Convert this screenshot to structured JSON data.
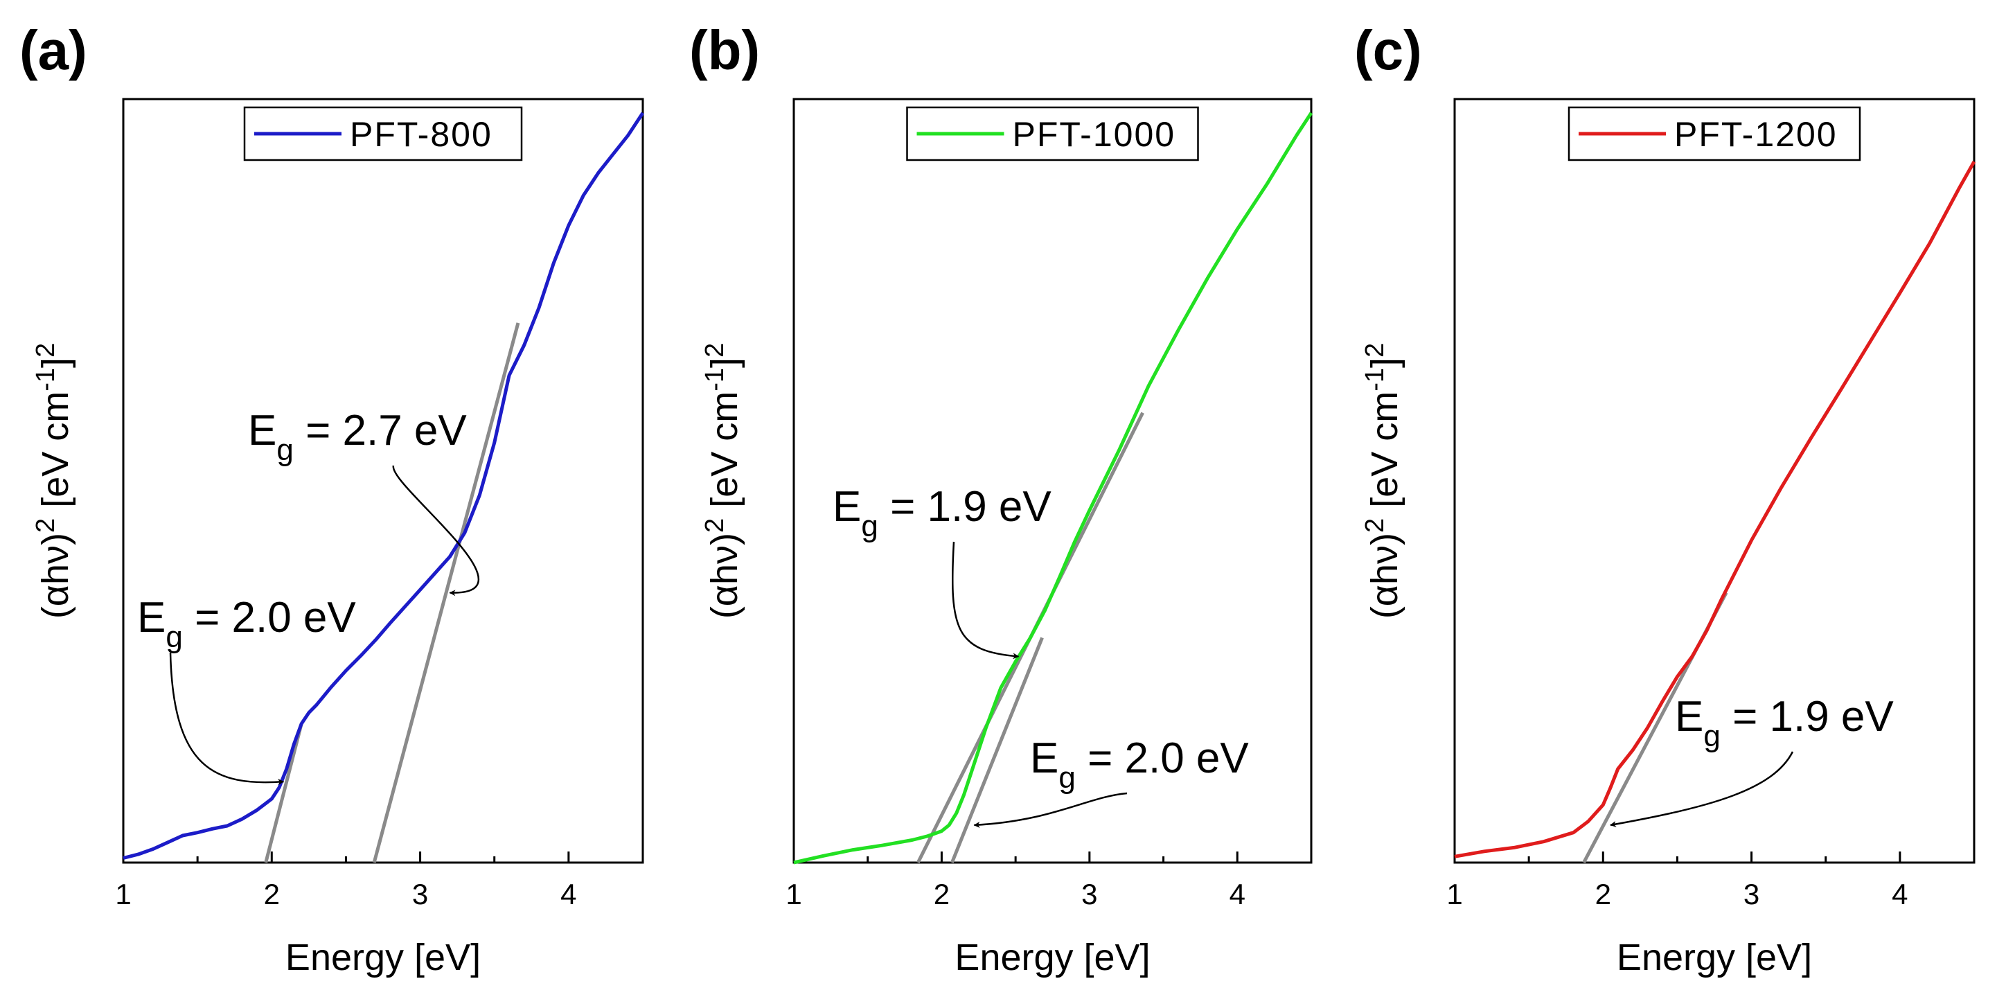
{
  "chart_data": [
    {
      "type": "line",
      "panel_label": "(a)",
      "xlabel": "Energy [eV]",
      "ylabel": {
        "base": "(αhν)",
        "sup": "2",
        "mid": " [eV cm",
        "sup2": "-1",
        "end": "]",
        "sup3": "2"
      },
      "xlim": [
        1,
        4.5
      ],
      "ylim": [
        0,
        1
      ],
      "y_ticks_labeled": false,
      "x_ticks": [
        1,
        2,
        3,
        4
      ],
      "x_tick_labels": [
        "1",
        "2",
        "3",
        "4"
      ],
      "legend_position": "top-center",
      "series": [
        {
          "name": "PFT-800",
          "color": "#1c1cc8",
          "x": [
            1.0,
            1.1,
            1.2,
            1.3,
            1.4,
            1.5,
            1.6,
            1.7,
            1.8,
            1.9,
            2.0,
            2.05,
            2.1,
            2.15,
            2.2,
            2.25,
            2.3,
            2.4,
            2.5,
            2.6,
            2.7,
            2.8,
            2.9,
            3.0,
            3.1,
            3.2,
            3.3,
            3.4,
            3.5,
            3.6,
            3.7,
            3.8,
            3.9,
            4.0,
            4.1,
            4.2,
            4.3,
            4.4,
            4.5
          ],
          "y": [
            0.006,
            0.011,
            0.018,
            0.027,
            0.036,
            0.04,
            0.045,
            0.049,
            0.058,
            0.07,
            0.085,
            0.1,
            0.125,
            0.158,
            0.185,
            0.2,
            0.21,
            0.234,
            0.256,
            0.276,
            0.297,
            0.32,
            0.342,
            0.364,
            0.386,
            0.408,
            0.44,
            0.49,
            0.56,
            0.65,
            0.69,
            0.74,
            0.8,
            0.85,
            0.89,
            0.92,
            0.945,
            0.97,
            1.0
          ]
        }
      ],
      "fit_lines": [
        {
          "x": [
            1.96,
            2.2
          ],
          "y": [
            0.0,
            0.185
          ]
        },
        {
          "x": [
            2.69,
            3.66
          ],
          "y": [
            0.0,
            0.72
          ]
        }
      ],
      "annotations": [
        {
          "text": "E",
          "sub": "g",
          "rest": " = 2.7 eV",
          "arrow_to": [
            3.2,
            0.36
          ]
        },
        {
          "text": "E",
          "sub": "g",
          "rest": " = 2.0 eV",
          "arrow_to": [
            2.08,
            0.108
          ]
        }
      ]
    },
    {
      "type": "line",
      "panel_label": "(b)",
      "xlabel": "Energy [eV]",
      "ylabel": {
        "base": "(αhν)",
        "sup": "2",
        "mid": " [eV cm",
        "sup2": "-1",
        "end": "]",
        "sup3": "2"
      },
      "xlim": [
        1,
        4.5
      ],
      "ylim": [
        0,
        1
      ],
      "y_ticks_labeled": false,
      "x_ticks": [
        1,
        2,
        3,
        4
      ],
      "x_tick_labels": [
        "1",
        "2",
        "3",
        "4"
      ],
      "legend_position": "top-center",
      "series": [
        {
          "name": "PFT-1000",
          "color": "#22e022",
          "x": [
            1.0,
            1.2,
            1.4,
            1.6,
            1.8,
            1.9,
            2.0,
            2.05,
            2.1,
            2.15,
            2.2,
            2.3,
            2.4,
            2.5,
            2.6,
            2.7,
            2.8,
            2.9,
            3.0,
            3.2,
            3.4,
            3.6,
            3.8,
            4.0,
            4.2,
            4.4,
            4.5
          ],
          "y": [
            0.0,
            0.009,
            0.017,
            0.023,
            0.03,
            0.035,
            0.042,
            0.05,
            0.066,
            0.09,
            0.12,
            0.18,
            0.233,
            0.268,
            0.3,
            0.337,
            0.382,
            0.428,
            0.47,
            0.55,
            0.636,
            0.71,
            0.78,
            0.845,
            0.905,
            0.97,
            1.0
          ]
        }
      ],
      "fit_lines": [
        {
          "x": [
            1.84,
            3.36
          ],
          "y": [
            0.0,
            0.6
          ]
        },
        {
          "x": [
            2.07,
            2.68
          ],
          "y": [
            0.0,
            0.3
          ]
        }
      ],
      "annotations": [
        {
          "text": "E",
          "sub": "g",
          "rest": " = 1.9 eV",
          "arrow_to": [
            2.52,
            0.275
          ]
        },
        {
          "text": "E",
          "sub": "g",
          "rest": " = 2.0 eV",
          "arrow_to": [
            2.22,
            0.05
          ]
        }
      ]
    },
    {
      "type": "line",
      "panel_label": "(c)",
      "xlabel": "Energy [eV]",
      "ylabel": {
        "base": "(αhν)",
        "sup": "2",
        "mid": " [eV cm",
        "sup2": "-1",
        "end": "]",
        "sup3": "2"
      },
      "xlim": [
        1,
        4.5
      ],
      "ylim": [
        0,
        1
      ],
      "y_ticks_labeled": false,
      "x_ticks": [
        1,
        2,
        3,
        4
      ],
      "x_tick_labels": [
        "1",
        "2",
        "3",
        "4"
      ],
      "legend_position": "top-center",
      "series": [
        {
          "name": "PFT-1200",
          "color": "#e01c1c",
          "x": [
            1.0,
            1.2,
            1.4,
            1.6,
            1.8,
            1.9,
            2.0,
            2.05,
            2.1,
            2.2,
            2.3,
            2.4,
            2.5,
            2.6,
            2.7,
            2.8,
            3.0,
            3.2,
            3.4,
            3.6,
            3.8,
            4.0,
            4.2,
            4.4,
            4.5
          ],
          "y": [
            0.008,
            0.015,
            0.02,
            0.028,
            0.04,
            0.055,
            0.077,
            0.1,
            0.125,
            0.15,
            0.18,
            0.215,
            0.248,
            0.275,
            0.31,
            0.352,
            0.43,
            0.5,
            0.566,
            0.63,
            0.695,
            0.76,
            0.826,
            0.9,
            0.935
          ]
        }
      ],
      "fit_lines": [
        {
          "x": [
            1.87,
            2.83
          ],
          "y": [
            0.0,
            0.36
          ]
        }
      ],
      "annotations": [
        {
          "text": "E",
          "sub": "g",
          "rest": " = 1.9 eV",
          "arrow_to": [
            2.05,
            0.05
          ]
        }
      ]
    }
  ]
}
